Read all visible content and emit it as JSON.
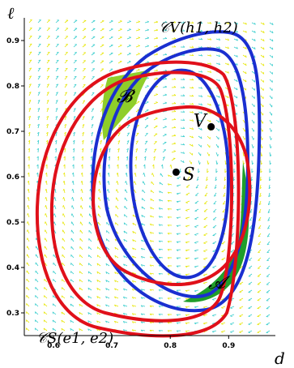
{
  "chart_data": {
    "type": "scatter",
    "title": "",
    "xlabel": "d",
    "ylabel": "ℓ",
    "xlim": [
      0.55,
      0.98
    ],
    "ylim": [
      0.25,
      0.95
    ],
    "x_ticks": [
      "0.6",
      "0.7",
      "0.8",
      "0.9"
    ],
    "y_ticks": [
      "0.3",
      "0.4",
      "0.5",
      "0.6",
      "0.7",
      "0.8",
      "0.9"
    ],
    "grid": false,
    "direction_field": {
      "colors": [
        "#e6e600",
        "#33cccc"
      ],
      "description_visible": false
    },
    "points": [
      {
        "label": "V",
        "x": 0.87,
        "y": 0.71
      },
      {
        "label": "S",
        "x": 0.81,
        "y": 0.61
      }
    ],
    "curves": [
      {
        "label": "𝒞V(h1, h2)",
        "color": "#1a2fd0",
        "role": "level sets around V"
      },
      {
        "label": "𝒞S(e1, e2)",
        "color": "#e0101a",
        "role": "level sets around S"
      }
    ],
    "regions": [
      {
        "label": "𝓑",
        "color": "#8fce2a"
      },
      {
        "label": "𝓐",
        "color": "#1f9e2a"
      }
    ],
    "annotations": {
      "cv_text": "𝒞V(h1, h2)",
      "cs_text": "𝒞S(e1, e2)"
    }
  },
  "colors": {
    "blue": "#1a2fd0",
    "red": "#e0101a",
    "region_b": "#8fce2a",
    "region_a": "#1f9e2a"
  }
}
